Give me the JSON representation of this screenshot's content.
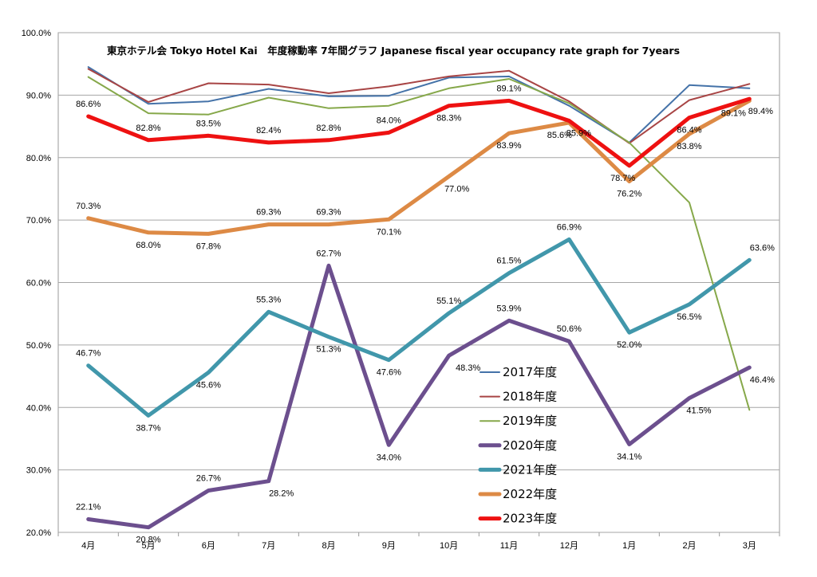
{
  "chart_data": {
    "type": "line",
    "title": "東京ホテル会 Tokyo Hotel Kai　年度稼動率 7年間グラフ Japanese fiscal year occupancy rate graph for 7years",
    "categories": [
      "4月",
      "5月",
      "6月",
      "7月",
      "8月",
      "9月",
      "10月",
      "11月",
      "12月",
      "1月",
      "2月",
      "3月"
    ],
    "ylim": [
      20,
      100
    ],
    "yticks": [
      20,
      30,
      40,
      50,
      60,
      70,
      80,
      90,
      100
    ],
    "ytick_labels": [
      "20.0%",
      "30.0%",
      "40.0%",
      "50.0%",
      "60.0%",
      "70.0%",
      "80.0%",
      "90.0%",
      "100.0%"
    ],
    "grid": true,
    "legend_position": "bottom-center",
    "series": [
      {
        "name": "2017年度",
        "color": "#4472a8",
        "width": 2,
        "labeled": false,
        "values": [
          94.5,
          88.6,
          89.0,
          91.0,
          89.8,
          89.9,
          92.8,
          93.0,
          88.3,
          82.4,
          91.6,
          91.1
        ]
      },
      {
        "name": "2018年度",
        "color": "#a84545",
        "width": 2,
        "labeled": false,
        "values": [
          94.2,
          88.9,
          91.9,
          91.7,
          90.3,
          91.4,
          93.0,
          93.9,
          89.0,
          82.3,
          89.2,
          91.8
        ]
      },
      {
        "name": "2019年度",
        "color": "#86a84a",
        "width": 2,
        "labeled": false,
        "values": [
          92.9,
          87.1,
          86.9,
          89.6,
          87.9,
          88.3,
          91.1,
          92.6,
          88.7,
          82.4,
          72.8,
          39.6
        ]
      },
      {
        "name": "2020年度",
        "color": "#6c4f8e",
        "width": 5,
        "labeled": true,
        "values": [
          22.1,
          20.8,
          26.7,
          28.2,
          62.7,
          34.0,
          48.3,
          53.9,
          50.6,
          34.1,
          41.5,
          46.4
        ],
        "labels": [
          "22.1%",
          "20.8%",
          "26.7%",
          "28.2%",
          "62.7%",
          "34.0%",
          "48.3%",
          "53.9%",
          "50.6%",
          "34.1%",
          "41.5%",
          "46.4%"
        ]
      },
      {
        "name": "2021年度",
        "color": "#4197ab",
        "width": 5,
        "labeled": true,
        "values": [
          46.7,
          38.7,
          45.6,
          55.3,
          51.3,
          47.6,
          55.1,
          61.5,
          66.9,
          52.0,
          56.5,
          63.6
        ],
        "labels": [
          "46.7%",
          "38.7%",
          "45.6%",
          "55.3%",
          "51.3%",
          "47.6%",
          "55.1%",
          "61.5%",
          "66.9%",
          "52.0%",
          "56.5%",
          "63.6%"
        ]
      },
      {
        "name": "2022年度",
        "color": "#dd8a45",
        "width": 5,
        "labeled": true,
        "values": [
          70.3,
          68.0,
          67.8,
          69.3,
          69.3,
          70.1,
          77.0,
          83.9,
          85.6,
          76.2,
          83.8,
          89.1
        ],
        "labels": [
          "70.3%",
          "68.0%",
          "67.8%",
          "69.3%",
          "69.3%",
          "70.1%",
          "77.0%",
          "83.9%",
          "85.6%",
          "76.2%",
          "83.8%",
          "89.1%"
        ]
      },
      {
        "name": "2023年度",
        "color": "#ee1111",
        "width": 5,
        "labeled": true,
        "values": [
          86.6,
          82.8,
          83.5,
          82.4,
          82.8,
          84.0,
          88.3,
          89.1,
          85.9,
          78.7,
          86.4,
          89.4
        ],
        "labels": [
          "86.6%",
          "82.8%",
          "83.5%",
          "82.4%",
          "82.8%",
          "84.0%",
          "88.3%",
          "89.1%",
          "85.9%",
          "78.7%",
          "86.4%",
          "89.4%"
        ]
      }
    ]
  }
}
